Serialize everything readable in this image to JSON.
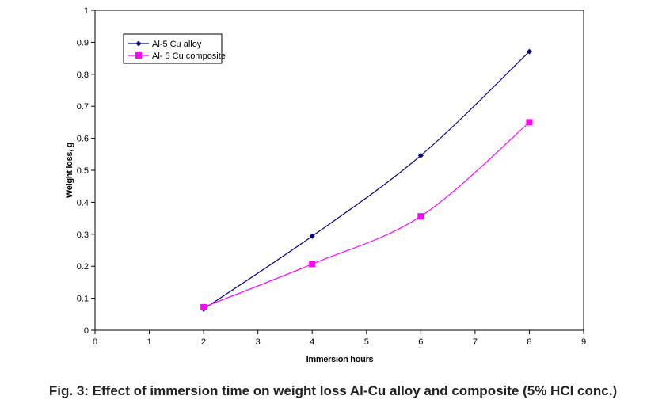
{
  "chart_data": {
    "type": "line",
    "title": "",
    "xlabel": "Immersion hours",
    "ylabel": "Weight loss, g",
    "xlim": [
      0,
      9
    ],
    "ylim": [
      0,
      1
    ],
    "xticks": [
      "0",
      "1",
      "2",
      "3",
      "4",
      "5",
      "6",
      "7",
      "8",
      "9"
    ],
    "yticks": [
      "0",
      "0.1",
      "0.2",
      "0.3",
      "0.4",
      "0.5",
      "0.6",
      "0.7",
      "0.8",
      "0.9",
      "1"
    ],
    "grid": false,
    "legend_position": "top-left",
    "series": [
      {
        "name": "Al-5 Cu alloy",
        "color": "#000080",
        "marker": "diamond",
        "x": [
          2,
          4,
          6,
          8
        ],
        "y": [
          0.066,
          0.294,
          0.546,
          0.871
        ]
      },
      {
        "name": "Al- 5 Cu composite",
        "color": "#ff00ff",
        "marker": "square",
        "x": [
          2,
          4,
          6,
          8
        ],
        "y": [
          0.072,
          0.207,
          0.356,
          0.65
        ]
      }
    ]
  },
  "caption": "Fig. 3: Effect of immersion time on weight loss Al-Cu alloy and composite (5% HCl conc.)"
}
